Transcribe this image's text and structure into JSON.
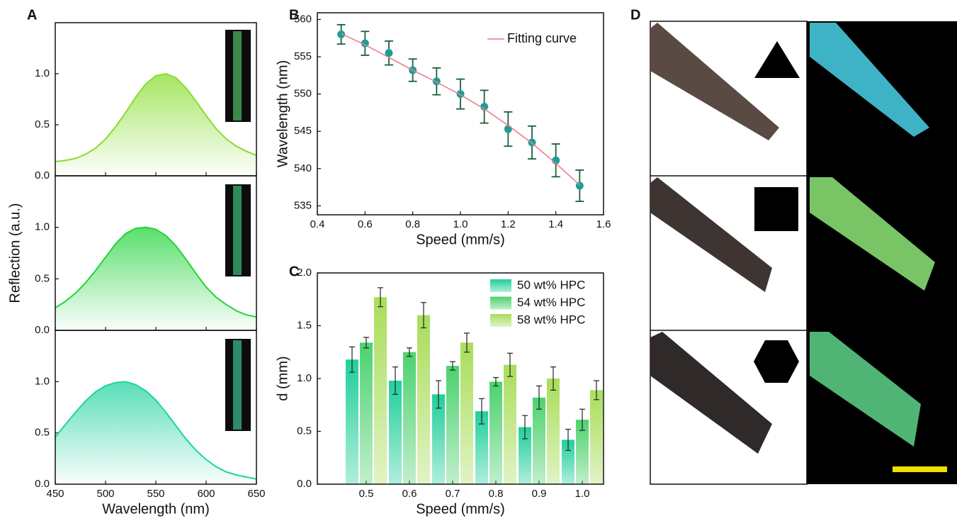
{
  "panel_d": {
    "label": "D"
  },
  "chart_data": [
    {
      "type": "area",
      "label": "A",
      "x": [
        450,
        460,
        470,
        480,
        490,
        500,
        510,
        520,
        530,
        540,
        550,
        560,
        570,
        580,
        590,
        600,
        610,
        620,
        630,
        640,
        650
      ],
      "series": [
        {
          "color": "#86dd2c",
          "values": [
            0.14,
            0.15,
            0.17,
            0.21,
            0.27,
            0.36,
            0.48,
            0.62,
            0.77,
            0.9,
            0.98,
            1.0,
            0.96,
            0.86,
            0.73,
            0.59,
            0.46,
            0.36,
            0.29,
            0.24,
            0.2
          ]
        }
      ],
      "xlim": [
        450,
        650
      ],
      "xticks": [
        450,
        500,
        550,
        600,
        650
      ],
      "ylim": [
        0,
        1.5
      ],
      "yticks": [
        {
          "value": 0,
          "label": "0.0"
        },
        {
          "value": 0.5,
          "label": "0.5"
        },
        {
          "value": 1,
          "label": "1.0"
        }
      ]
    },
    {
      "type": "area",
      "ylabel": "Reflection (a.u.)",
      "x": [
        450,
        460,
        470,
        480,
        490,
        500,
        510,
        520,
        530,
        540,
        550,
        560,
        570,
        580,
        590,
        600,
        610,
        620,
        630,
        640,
        650
      ],
      "series": [
        {
          "color": "#22d43a",
          "values": [
            0.22,
            0.28,
            0.36,
            0.46,
            0.58,
            0.71,
            0.84,
            0.94,
            0.99,
            1.0,
            0.98,
            0.92,
            0.82,
            0.69,
            0.55,
            0.42,
            0.32,
            0.25,
            0.19,
            0.15,
            0.13
          ]
        }
      ],
      "xlim": [
        450,
        650
      ],
      "xticks": [
        450,
        500,
        550,
        600,
        650
      ],
      "ylim": [
        0,
        1.5
      ],
      "yticks": [
        {
          "value": 0,
          "label": "0.0"
        },
        {
          "value": 0.5,
          "label": "0.5"
        },
        {
          "value": 1,
          "label": "1.0"
        }
      ]
    },
    {
      "type": "area",
      "xlabel": "Wavelength (nm)",
      "x": [
        450,
        460,
        470,
        480,
        490,
        500,
        510,
        520,
        530,
        540,
        550,
        560,
        570,
        580,
        590,
        600,
        610,
        620,
        630,
        640,
        650
      ],
      "series": [
        {
          "color": "#1fd3a0",
          "values": [
            0.46,
            0.58,
            0.7,
            0.81,
            0.9,
            0.96,
            0.99,
            1.0,
            0.97,
            0.91,
            0.82,
            0.7,
            0.57,
            0.44,
            0.33,
            0.24,
            0.17,
            0.12,
            0.09,
            0.07,
            0.05
          ]
        }
      ],
      "xlim": [
        450,
        650
      ],
      "xticks": [
        450,
        500,
        550,
        600,
        650
      ],
      "ylim": [
        0,
        1.5
      ],
      "yticks": [
        {
          "value": 0,
          "label": "0.0"
        },
        {
          "value": 0.5,
          "label": "0.5"
        },
        {
          "value": 1,
          "label": "1.0"
        }
      ]
    },
    {
      "type": "scatter",
      "label": "B",
      "xlabel": "Speed (mm/s)",
      "ylabel": "Wavelength (nm)",
      "x": [
        0.5,
        0.6,
        0.7,
        0.8,
        0.9,
        1.0,
        1.1,
        1.2,
        1.3,
        1.4,
        1.5
      ],
      "series": [
        {
          "color": "#1a9e96",
          "error_color": "#1d5e3c",
          "values": [
            558.0,
            556.8,
            555.5,
            553.2,
            551.7,
            550.0,
            548.3,
            545.3,
            543.5,
            541.1,
            537.7
          ],
          "errors": [
            1.3,
            1.6,
            1.6,
            1.5,
            1.8,
            2.0,
            2.2,
            2.3,
            2.2,
            2.2,
            2.1
          ]
        },
        {
          "name": "Fitting curve",
          "kind": "line",
          "color": "#f07c8c",
          "values": [
            558.1,
            556.6,
            554.9,
            553.2,
            551.6,
            549.9,
            548.0,
            545.8,
            543.4,
            540.7,
            537.8
          ]
        }
      ],
      "xlim": [
        0.4,
        1.6
      ],
      "xticks": [
        0.4,
        0.6,
        0.8,
        {
          "value": 1,
          "label": "1.0"
        },
        1.2,
        1.4,
        1.6
      ],
      "ylim": [
        533.8,
        560.9
      ],
      "yticks": [
        535,
        540,
        545,
        550,
        555,
        560
      ]
    },
    {
      "type": "bar",
      "label": "C",
      "xlabel": "Speed (mm/s)",
      "ylabel": "d (mm)",
      "categories": [
        "0.5",
        "0.6",
        "0.7",
        "0.8",
        "0.9",
        "1.0"
      ],
      "series": [
        {
          "name": "50 wt% HPC",
          "color": "#1fcf9a",
          "values": [
            1.18,
            0.98,
            0.85,
            0.69,
            0.54,
            0.42
          ],
          "errors": [
            0.12,
            0.13,
            0.13,
            0.12,
            0.11,
            0.1
          ]
        },
        {
          "name": "54 wt% HPC",
          "color": "#4cd16e",
          "values": [
            1.34,
            1.25,
            1.12,
            0.97,
            0.82,
            0.61
          ],
          "errors": [
            0.05,
            0.04,
            0.04,
            0.04,
            0.11,
            0.1
          ]
        },
        {
          "name": "58 wt% HPC",
          "color": "#a9dd5a",
          "values": [
            1.77,
            1.6,
            1.34,
            1.13,
            1.0,
            0.89
          ],
          "errors": [
            0.09,
            0.12,
            0.09,
            0.11,
            0.11,
            0.09
          ]
        }
      ],
      "ylim": [
        0,
        2
      ],
      "yticks": [
        {
          "value": 0,
          "label": "0.0"
        },
        {
          "value": 0.5,
          "label": "0.5"
        },
        {
          "value": 1,
          "label": "1.0"
        },
        {
          "value": 1.5,
          "label": "1.5"
        },
        {
          "value": 2,
          "label": "2.0"
        }
      ]
    }
  ]
}
